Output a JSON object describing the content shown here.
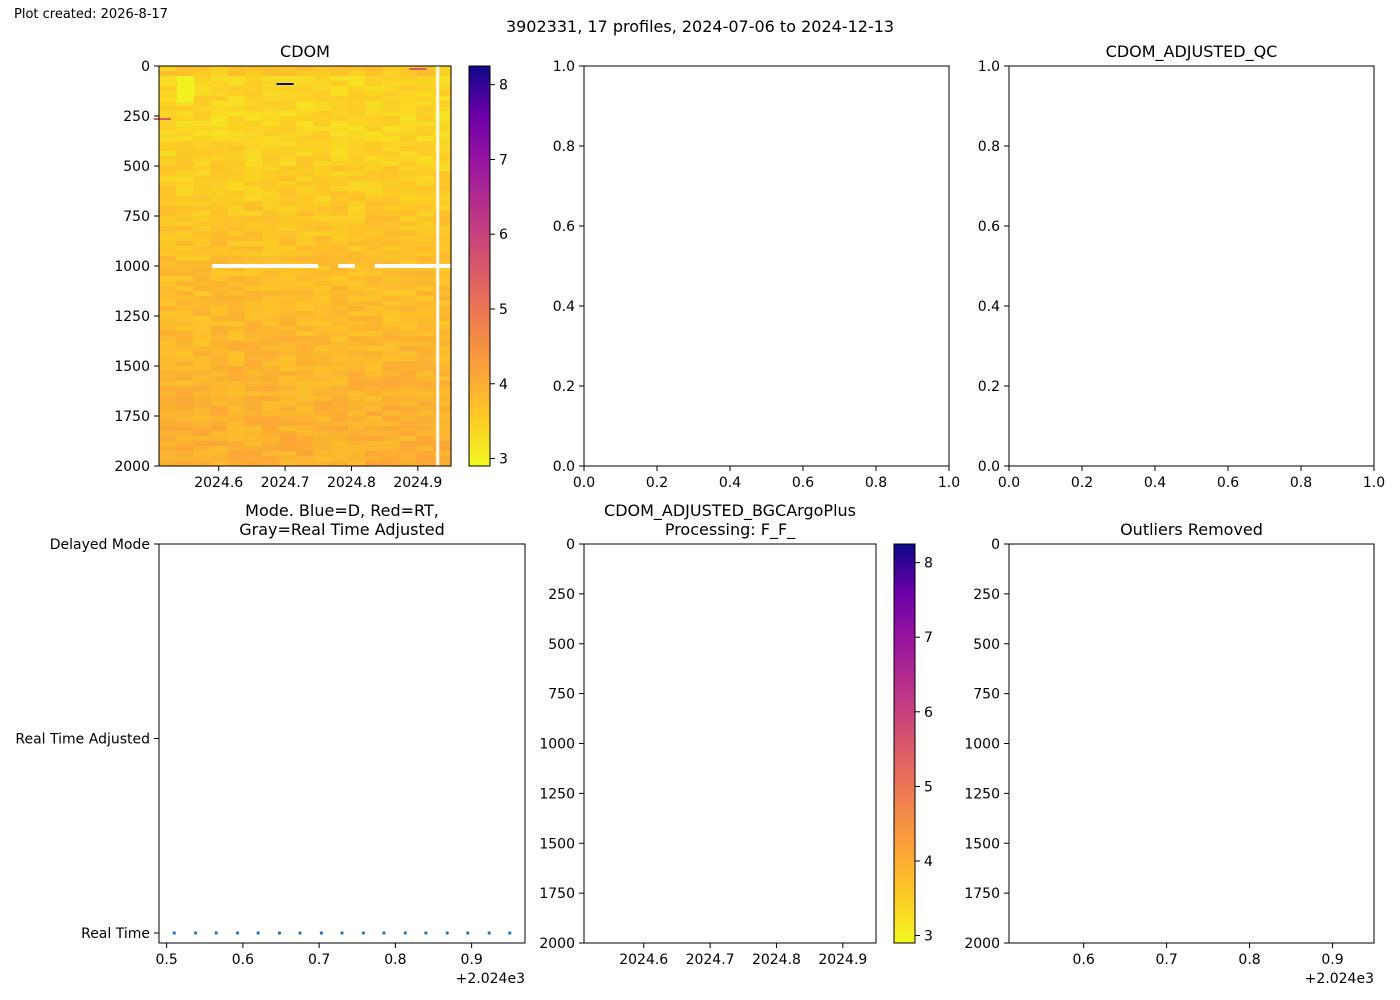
{
  "figure": {
    "created_label": "Plot created: 2026-8-17",
    "suptitle": "3902331, 17 profiles, 2024-07-06 to 2024-12-13"
  },
  "colors": {
    "plasma_low": "#f0f921",
    "plasma_mid": "#fca636",
    "plasma_high": "#0d0887",
    "mode_marker": "#1f77b4",
    "gap": "#ffffff"
  },
  "chart_data": [
    {
      "id": "cdom",
      "type": "heatmap",
      "title": "CDOM",
      "xlabel": "",
      "ylabel": "",
      "xlim": [
        2024.51,
        2024.95
      ],
      "ylim": [
        2000,
        0
      ],
      "xticks": [
        2024.6,
        2024.7,
        2024.8,
        2024.9
      ],
      "xtick_labels": [
        "2024.6",
        "2024.7",
        "2024.8",
        "2024.9"
      ],
      "yticks": [
        0,
        250,
        500,
        750,
        1000,
        1250,
        1500,
        1750,
        2000
      ],
      "ytick_labels": [
        "0",
        "250",
        "500",
        "750",
        "1000",
        "1250",
        "1500",
        "1750",
        "2000"
      ],
      "colormap": "plasma_r",
      "colorbar": {
        "range": [
          2.9,
          8.25
        ],
        "ticks": [
          3,
          4,
          5,
          6,
          7,
          8
        ],
        "tick_labels": [
          "3",
          "4",
          "5",
          "6",
          "7",
          "8"
        ]
      },
      "profile_dates": [
        2024.51,
        2024.538,
        2024.565,
        2024.593,
        2024.62,
        2024.648,
        2024.675,
        2024.703,
        2024.73,
        2024.758,
        2024.785,
        2024.813,
        2024.84,
        2024.868,
        2024.895,
        2024.923,
        2024.95
      ],
      "approx_values": {
        "surface_0_40m": 3.6,
        "upper_50_300m": 3.4,
        "mid_300_1000m": 3.75,
        "deep_1000_2000m": 4.0
      },
      "notable_features": [
        {
          "x": 2024.55,
          "depth_range": [
            50,
            180
          ],
          "value": 3.0
        },
        {
          "x": 2024.7,
          "depth": 90,
          "value": 8.2
        },
        {
          "x": 2024.9,
          "depth": 15,
          "value": 5.5
        },
        {
          "x": 2024.515,
          "depth": 265,
          "value": 5.5
        }
      ],
      "gaps": [
        {
          "kind": "horizontal",
          "depth": 1000,
          "x_ranges": [
            [
              2024.59,
              2024.75
            ],
            [
              2024.78,
              2024.805
            ],
            [
              2024.835,
              2024.95
            ]
          ]
        },
        {
          "kind": "vertical",
          "x": 2024.93,
          "depth_range": [
            0,
            2000
          ]
        }
      ]
    },
    {
      "id": "cdom-adjusted",
      "type": "scatter",
      "title": "",
      "xlim": [
        0,
        1
      ],
      "ylim": [
        0,
        1
      ],
      "xticks": [
        0,
        0.2,
        0.4,
        0.6,
        0.8,
        1.0
      ],
      "xtick_labels": [
        "0.0",
        "0.2",
        "0.4",
        "0.6",
        "0.8",
        "1.0"
      ],
      "yticks": [
        0,
        0.2,
        0.4,
        0.6,
        0.8,
        1.0
      ],
      "ytick_labels": [
        "0.0",
        "0.2",
        "0.4",
        "0.6",
        "0.8",
        "1.0"
      ],
      "series": []
    },
    {
      "id": "cdom-adjusted-qc",
      "type": "scatter",
      "title": "CDOM_ADJUSTED_QC",
      "xlim": [
        0,
        1
      ],
      "ylim": [
        0,
        1
      ],
      "xticks": [
        0,
        0.2,
        0.4,
        0.6,
        0.8,
        1.0
      ],
      "xtick_labels": [
        "0.0",
        "0.2",
        "0.4",
        "0.6",
        "0.8",
        "1.0"
      ],
      "yticks": [
        0,
        0.2,
        0.4,
        0.6,
        0.8,
        1.0
      ],
      "ytick_labels": [
        "0.0",
        "0.2",
        "0.4",
        "0.6",
        "0.8",
        "1.0"
      ],
      "series": []
    },
    {
      "id": "mode",
      "type": "scatter",
      "title": "Mode. Blue=D, Red=RT,\nGray=Real Time Adjusted",
      "xlim": [
        0.49,
        0.97
      ],
      "ylim": [
        0,
        2
      ],
      "xticks": [
        0.5,
        0.6,
        0.7,
        0.8,
        0.9
      ],
      "xtick_labels": [
        "0.5",
        "0.6",
        "0.7",
        "0.8",
        "0.9"
      ],
      "offset_label": "+2.024e3",
      "yticks": [
        0,
        1,
        2
      ],
      "ytick_labels": [
        "Real Time",
        "Real Time Adjusted",
        "Delayed Mode"
      ],
      "series": [
        {
          "x": [
            0.51,
            0.538,
            0.565,
            0.593,
            0.62,
            0.648,
            0.675,
            0.703,
            0.73,
            0.758,
            0.785,
            0.813,
            0.84,
            0.868,
            0.895,
            0.923,
            0.95
          ],
          "y": [
            0,
            0,
            0,
            0,
            0,
            0,
            0,
            0,
            0,
            0,
            0,
            0,
            0,
            0,
            0,
            0,
            0
          ]
        }
      ]
    },
    {
      "id": "bgcargoplus",
      "type": "heatmap",
      "title": "CDOM_ADJUSTED_BGCArgoPlus\nProcessing: F_F_",
      "xlim": [
        2024.51,
        2024.95
      ],
      "ylim": [
        2000,
        0
      ],
      "xticks": [
        2024.6,
        2024.7,
        2024.8,
        2024.9
      ],
      "xtick_labels": [
        "2024.6",
        "2024.7",
        "2024.8",
        "2024.9"
      ],
      "yticks": [
        0,
        250,
        500,
        750,
        1000,
        1250,
        1500,
        1750,
        2000
      ],
      "ytick_labels": [
        "0",
        "250",
        "500",
        "750",
        "1000",
        "1250",
        "1500",
        "1750",
        "2000"
      ],
      "colormap": "plasma_r",
      "colorbar": {
        "range": [
          2.9,
          8.25
        ],
        "ticks": [
          3,
          4,
          5,
          6,
          7,
          8
        ],
        "tick_labels": [
          "3",
          "4",
          "5",
          "6",
          "7",
          "8"
        ]
      },
      "series": []
    },
    {
      "id": "outliers",
      "type": "scatter",
      "title": "Outliers Removed",
      "xlim": [
        0.51,
        0.95
      ],
      "ylim": [
        2000,
        0
      ],
      "xticks": [
        0.6,
        0.7,
        0.8,
        0.9
      ],
      "xtick_labels": [
        "0.6",
        "0.7",
        "0.8",
        "0.9"
      ],
      "offset_label": "+2.024e3",
      "yticks": [
        0,
        250,
        500,
        750,
        1000,
        1250,
        1500,
        1750,
        2000
      ],
      "ytick_labels": [
        "0",
        "250",
        "500",
        "750",
        "1000",
        "1250",
        "1500",
        "1750",
        "2000"
      ],
      "series": []
    }
  ]
}
